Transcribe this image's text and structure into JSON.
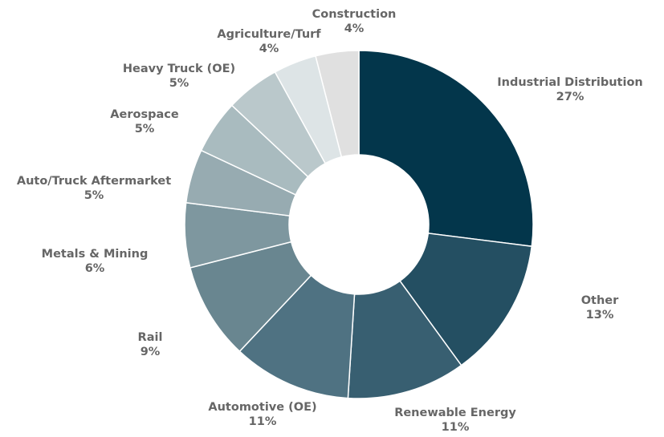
{
  "chart_data": {
    "type": "donut",
    "categories": [
      "Industrial Distribution",
      "Other",
      "Renewable Energy",
      "Automotive (OE)",
      "Rail",
      "Metals & Mining",
      "Auto/Truck Aftermarket",
      "Aerospace",
      "Heavy Truck (OE)",
      "Agriculture/Turf",
      "Construction"
    ],
    "values": [
      27,
      13,
      11,
      11,
      9,
      6,
      5,
      5,
      5,
      4,
      4
    ],
    "value_labels": [
      "27%",
      "13%",
      "11%",
      "11%",
      "9%",
      "6%",
      "5%",
      "5%",
      "5%",
      "4%",
      "4%"
    ],
    "colors": [
      "#03364b",
      "#244f62",
      "#385f71",
      "#4f7282",
      "#698690",
      "#7e979f",
      "#97abb1",
      "#a9bbbf",
      "#bac8cb",
      "#dde4e6",
      "#e0e0e0"
    ]
  }
}
